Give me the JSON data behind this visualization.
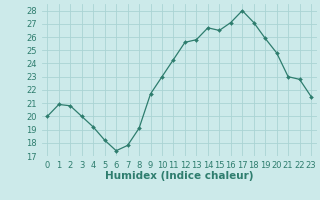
{
  "x": [
    0,
    1,
    2,
    3,
    4,
    5,
    6,
    7,
    8,
    9,
    10,
    11,
    12,
    13,
    14,
    15,
    16,
    17,
    18,
    19,
    20,
    21,
    22,
    23
  ],
  "y": [
    20.0,
    20.9,
    20.8,
    20.0,
    19.2,
    18.2,
    17.4,
    17.8,
    19.1,
    21.7,
    23.0,
    24.3,
    25.6,
    25.8,
    26.7,
    26.5,
    27.1,
    28.0,
    27.1,
    25.9,
    24.8,
    23.0,
    22.8,
    21.5
  ],
  "line_color": "#2e7d6e",
  "marker": "D",
  "marker_size": 2.0,
  "bg_color": "#cceaea",
  "grid_color": "#aad4d4",
  "xlabel": "Humidex (Indice chaleur)",
  "ylim": [
    17,
    28.5
  ],
  "yticks": [
    17,
    18,
    19,
    20,
    21,
    22,
    23,
    24,
    25,
    26,
    27,
    28
  ],
  "xticks": [
    0,
    1,
    2,
    3,
    4,
    5,
    6,
    7,
    8,
    9,
    10,
    11,
    12,
    13,
    14,
    15,
    16,
    17,
    18,
    19,
    20,
    21,
    22,
    23
  ],
  "tick_color": "#2e7d6e",
  "label_fontsize": 7.5,
  "tick_fontsize": 6.0
}
